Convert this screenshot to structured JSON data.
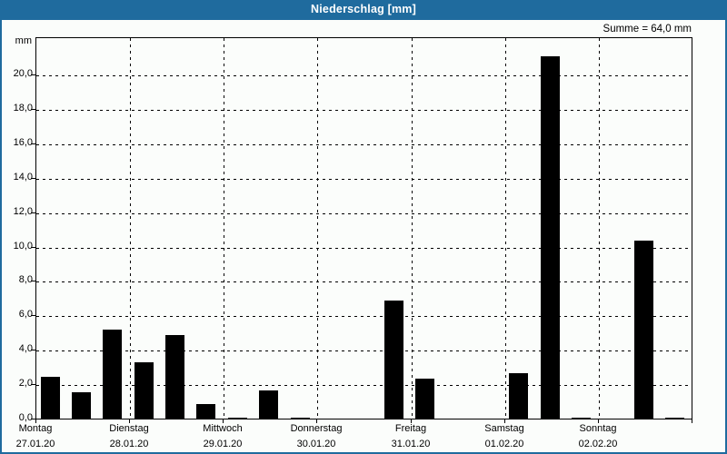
{
  "titlebar": {
    "title": "Niederschlag [mm]"
  },
  "axis": {
    "unit": "mm"
  },
  "chart_data": {
    "type": "bar",
    "title": "Niederschlag [mm]",
    "ylabel": "mm",
    "xlabel": "",
    "ylim": [
      0,
      22.2
    ],
    "grid": "dashed",
    "legend": "none",
    "bars_per_day": 3,
    "sum_label": "Summe = 64,0 mm",
    "y_ticks": [
      {
        "value": 0,
        "label": "0,0"
      },
      {
        "value": 2,
        "label": "2,0"
      },
      {
        "value": 4,
        "label": "4,0"
      },
      {
        "value": 6,
        "label": "6,0"
      },
      {
        "value": 8,
        "label": "8,0"
      },
      {
        "value": 10,
        "label": "10,0"
      },
      {
        "value": 12,
        "label": "12,0"
      },
      {
        "value": 14,
        "label": "14,0"
      },
      {
        "value": 16,
        "label": "16,0"
      },
      {
        "value": 18,
        "label": "18,0"
      },
      {
        "value": 20,
        "label": "20,0"
      }
    ],
    "days": [
      {
        "weekday": "Montag",
        "date": "27.01.20",
        "values": [
          2.5,
          1.6,
          5.2
        ]
      },
      {
        "weekday": "Dienstag",
        "date": "28.01.20",
        "values": [
          3.3,
          4.9,
          0.9
        ]
      },
      {
        "weekday": "Mittwoch",
        "date": "29.01.20",
        "values": [
          0.1,
          1.7,
          0.1
        ]
      },
      {
        "weekday": "Donnerstag",
        "date": "30.01.20",
        "values": [
          0.0,
          0.0,
          6.9
        ]
      },
      {
        "weekday": "Freitag",
        "date": "31.01.20",
        "values": [
          2.4,
          0.0,
          0.0
        ]
      },
      {
        "weekday": "Samstag",
        "date": "01.02.20",
        "values": [
          2.7,
          21.1,
          0.1
        ]
      },
      {
        "weekday": "Sonntag",
        "date": "02.02.20",
        "values": [
          0.0,
          10.4,
          0.1
        ]
      }
    ]
  },
  "colors": {
    "titlebar_bg": "#1f6b9e",
    "titlebar_text": "#ffffff",
    "frame_border": "#1f6b9e",
    "background": "#fbfdfb",
    "bar": "#000000",
    "grid": "#000000"
  }
}
